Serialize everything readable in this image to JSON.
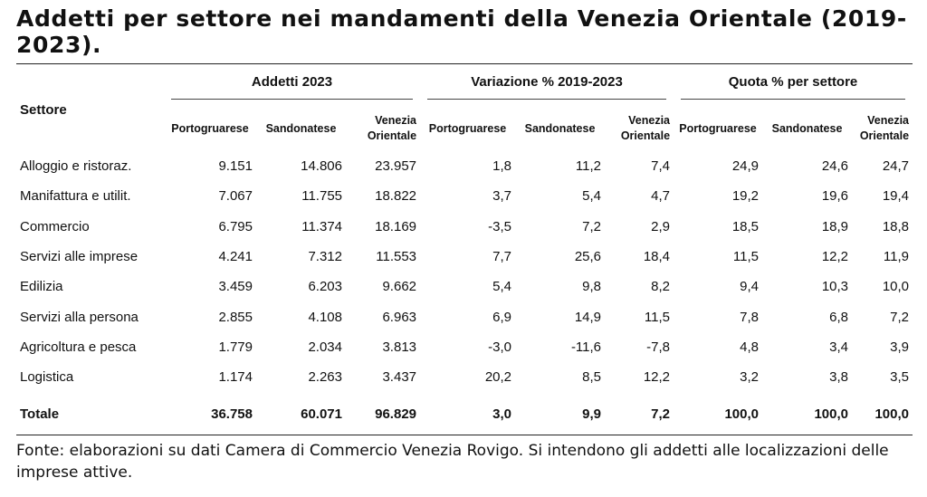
{
  "title": "Addetti per settore nei mandamenti della Venezia Orientale (2019-2023).",
  "table": {
    "row_header": "Settore",
    "groups": [
      "Addetti 2023",
      "Variazione % 2019-2023",
      "Quota % per settore"
    ],
    "subheaders": {
      "a": "Portogruarese",
      "b": "Sandonatese",
      "c1": "Venezia",
      "c2": "Orientale"
    },
    "rows": [
      {
        "sector": "Alloggio e ristoraz.",
        "values": [
          "9.151",
          "14.806",
          "23.957",
          "1,8",
          "11,2",
          "7,4",
          "24,9",
          "24,6",
          "24,7"
        ]
      },
      {
        "sector": "Manifattura e utilit.",
        "values": [
          "7.067",
          "11.755",
          "18.822",
          "3,7",
          "5,4",
          "4,7",
          "19,2",
          "19,6",
          "19,4"
        ]
      },
      {
        "sector": "Commercio",
        "values": [
          "6.795",
          "11.374",
          "18.169",
          "-3,5",
          "7,2",
          "2,9",
          "18,5",
          "18,9",
          "18,8"
        ]
      },
      {
        "sector": "Servizi alle imprese",
        "values": [
          "4.241",
          "7.312",
          "11.553",
          "7,7",
          "25,6",
          "18,4",
          "11,5",
          "12,2",
          "11,9"
        ]
      },
      {
        "sector": "Edilizia",
        "values": [
          "3.459",
          "6.203",
          "9.662",
          "5,4",
          "9,8",
          "8,2",
          "9,4",
          "10,3",
          "10,0"
        ]
      },
      {
        "sector": "Servizi alla persona",
        "values": [
          "2.855",
          "4.108",
          "6.963",
          "6,9",
          "14,9",
          "11,5",
          "7,8",
          "6,8",
          "7,2"
        ]
      },
      {
        "sector": "Agricoltura e pesca",
        "values": [
          "1.779",
          "2.034",
          "3.813",
          "-3,0",
          "-11,6",
          "-7,8",
          "4,8",
          "3,4",
          "3,9"
        ]
      },
      {
        "sector": "Logistica",
        "values": [
          "1.174",
          "2.263",
          "3.437",
          "20,2",
          "8,5",
          "12,2",
          "3,2",
          "3,8",
          "3,5"
        ]
      }
    ],
    "total": {
      "sector": "Totale",
      "values": [
        "36.758",
        "60.071",
        "96.829",
        "3,0",
        "9,9",
        "7,2",
        "100,0",
        "100,0",
        "100,0"
      ]
    }
  },
  "note": "Fonte: elaborazioni su dati Camera di Commercio Venezia Rovigo. Si intendono gli addetti alle localizzazioni delle imprese attive."
}
